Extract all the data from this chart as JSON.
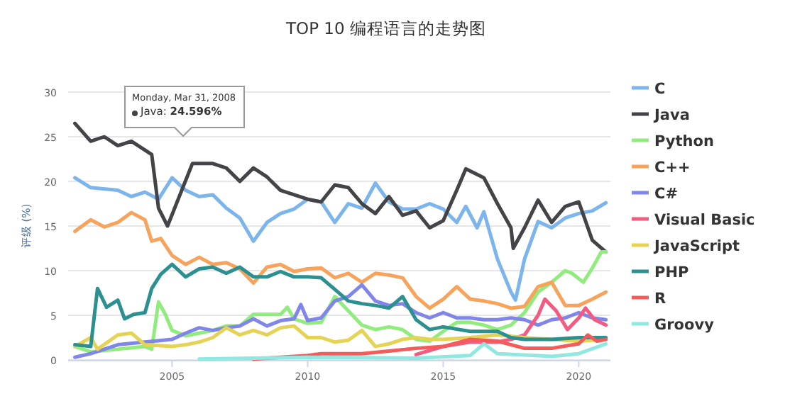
{
  "chart_data": {
    "type": "line",
    "title": "TOP 10 编程语言的走势图",
    "ylabel": "评级 (%)",
    "annotations": [
      "Monday, Mar 31, 2008",
      "Java: **24.596%**"
    ],
    "xlim": [
      "2001-03",
      "2021-03"
    ],
    "xticks": [
      {
        "value": "2005",
        "label": "2005"
      },
      {
        "value": "2010",
        "label": "2010"
      },
      {
        "value": "2015",
        "label": "2015"
      },
      {
        "value": "2020",
        "label": "2020"
      }
    ],
    "ylim": [
      0,
      30
    ],
    "yticks": [
      0,
      5,
      10,
      15,
      20,
      25,
      30
    ],
    "grid": "y",
    "legend": "right",
    "marker": "none",
    "line_style": "solid",
    "series": [
      {
        "name": "C",
        "color": "#7cb5ec",
        "x": [
          "2001-06",
          "2002-01",
          "2003-01",
          "2003-07",
          "2004-01",
          "2004-07",
          "2005-01",
          "2005-07",
          "2006-01",
          "2006-07",
          "2007-01",
          "2007-07",
          "2008-01",
          "2008-07",
          "2009-01",
          "2009-07",
          "2010-01",
          "2010-07",
          "2011-01",
          "2011-07",
          "2012-01",
          "2012-07",
          "2013-01",
          "2013-07",
          "2014-01",
          "2014-07",
          "2015-01",
          "2015-07",
          "2015-11",
          "2016-04",
          "2016-07",
          "2017-01",
          "2017-07",
          "2017-09",
          "2018-01",
          "2018-07",
          "2019-01",
          "2019-07",
          "2020-01",
          "2020-07",
          "2021-01"
        ],
        "values": [
          20.4,
          19.3,
          19,
          18.3,
          18.8,
          18,
          20.4,
          19,
          18.3,
          18.5,
          17,
          15.9,
          13.3,
          15.4,
          16.4,
          16.9,
          18,
          17.7,
          15.4,
          17.5,
          17,
          19.8,
          17.7,
          16.9,
          16.9,
          17.5,
          16.9,
          15.4,
          17.2,
          14.8,
          16.6,
          11.3,
          7.6,
          6.7,
          11.3,
          15.5,
          14.8,
          15.9,
          16.4,
          16.7,
          17.6
        ]
      },
      {
        "name": "Java",
        "color": "#434348",
        "x": [
          "2001-06",
          "2002-01",
          "2002-07",
          "2003-01",
          "2003-07",
          "2004-01",
          "2004-04",
          "2004-07",
          "2004-11",
          "2005-10",
          "2006-07",
          "2007-01",
          "2007-07",
          "2008-01",
          "2008-07",
          "2009-01",
          "2009-07",
          "2010-01",
          "2010-07",
          "2011-01",
          "2011-07",
          "2012-01",
          "2012-07",
          "2013-01",
          "2013-07",
          "2014-01",
          "2014-07",
          "2015-01",
          "2015-07",
          "2015-11",
          "2016-07",
          "2017-01",
          "2017-07",
          "2017-08",
          "2018-01",
          "2018-07",
          "2019-01",
          "2019-07",
          "2020-01",
          "2020-07",
          "2021-01"
        ],
        "values": [
          26.5,
          24.5,
          25,
          24,
          24.5,
          23.5,
          23,
          17,
          15,
          22,
          22,
          21.5,
          20,
          21.5,
          20.5,
          19,
          18.5,
          18,
          17.7,
          19.6,
          19.3,
          17.5,
          16.4,
          18.3,
          16.2,
          16.7,
          14.8,
          15.6,
          19,
          21.4,
          20.4,
          17.5,
          14.8,
          12.5,
          14.8,
          17.9,
          15.4,
          17.2,
          17.7,
          13.4,
          12.1
        ]
      },
      {
        "name": "Python",
        "color": "#90ed7d",
        "x": [
          "2001-06",
          "2002-01",
          "2003-01",
          "2004-01",
          "2004-04",
          "2004-07",
          "2004-10",
          "2005-01",
          "2005-07",
          "2006-01",
          "2006-07",
          "2007-01",
          "2007-07",
          "2008-01",
          "2008-07",
          "2009-01",
          "2009-04",
          "2009-07",
          "2010-01",
          "2010-07",
          "2011-01",
          "2011-07",
          "2012-01",
          "2012-07",
          "2013-01",
          "2013-07",
          "2014-01",
          "2014-07",
          "2015-01",
          "2015-07",
          "2016-01",
          "2016-07",
          "2017-01",
          "2017-07",
          "2018-01",
          "2018-07",
          "2019-01",
          "2019-07",
          "2019-10",
          "2020-03",
          "2020-07",
          "2020-11",
          "2021-01"
        ],
        "values": [
          1.5,
          0.9,
          1.2,
          1.5,
          1.2,
          6.5,
          5.1,
          3.3,
          2.7,
          3,
          3.3,
          3.8,
          3.8,
          5.1,
          5.1,
          5.1,
          5.9,
          4.6,
          4.1,
          4.2,
          7.1,
          5.5,
          3.9,
          3.4,
          3.7,
          3.4,
          2.3,
          2.1,
          3.2,
          4.2,
          4.2,
          3.9,
          3.4,
          3.9,
          5.3,
          7.6,
          8.7,
          10,
          9.7,
          8.7,
          10.3,
          12.1,
          12.1
        ]
      },
      {
        "name": "C++",
        "color": "#f7a35c",
        "x": [
          "2001-06",
          "2002-01",
          "2002-07",
          "2003-01",
          "2003-07",
          "2004-01",
          "2004-04",
          "2004-08",
          "2005-01",
          "2005-07",
          "2006-01",
          "2006-07",
          "2007-01",
          "2007-07",
          "2008-01",
          "2008-07",
          "2009-01",
          "2009-07",
          "2010-01",
          "2010-07",
          "2011-01",
          "2011-07",
          "2012-01",
          "2012-07",
          "2013-01",
          "2013-07",
          "2014-01",
          "2014-07",
          "2015-01",
          "2015-07",
          "2016-01",
          "2016-07",
          "2017-01",
          "2017-07",
          "2018-01",
          "2018-07",
          "2019-01",
          "2019-07",
          "2020-01",
          "2020-07",
          "2021-01"
        ],
        "values": [
          14.4,
          15.7,
          14.9,
          15.4,
          16.5,
          15.7,
          13.3,
          13.6,
          11.7,
          10.7,
          11.5,
          10.7,
          10.9,
          10.2,
          8.6,
          10.4,
          10.7,
          9.9,
          10.2,
          10.3,
          9.2,
          9.7,
          8.7,
          9.7,
          9.5,
          9.2,
          7.1,
          5.8,
          6.8,
          8.2,
          6.8,
          6.6,
          6.3,
          5.8,
          6,
          8.2,
          8.7,
          6.1,
          6.1,
          6.8,
          7.6
        ]
      },
      {
        "name": "C#",
        "color": "#8085e9",
        "x": [
          "2001-06",
          "2002-01",
          "2003-01",
          "2004-01",
          "2005-01",
          "2005-07",
          "2006-01",
          "2006-07",
          "2007-01",
          "2007-07",
          "2008-01",
          "2008-07",
          "2009-01",
          "2009-07",
          "2009-10",
          "2010-01",
          "2010-07",
          "2011-01",
          "2011-07",
          "2012-01",
          "2012-07",
          "2013-01",
          "2013-07",
          "2014-01",
          "2014-07",
          "2015-01",
          "2015-07",
          "2016-01",
          "2016-07",
          "2017-01",
          "2017-07",
          "2018-01",
          "2018-07",
          "2019-01",
          "2019-07",
          "2020-01",
          "2020-07",
          "2021-01"
        ],
        "values": [
          0.3,
          0.7,
          1.7,
          2,
          2.3,
          3,
          3.6,
          3.3,
          3.6,
          3.8,
          4.6,
          3.8,
          4.4,
          4.6,
          6.2,
          4.4,
          4.7,
          6.6,
          7.1,
          8.4,
          6.6,
          6.1,
          6.3,
          5.3,
          4.7,
          5.3,
          4.7,
          4.7,
          4.5,
          4.5,
          4.7,
          4.5,
          3.9,
          4.5,
          4.7,
          5.3,
          4.7,
          4.5
        ]
      },
      {
        "name": "Visual Basic",
        "color": "#f15c80",
        "x": [
          "2014-01",
          "2015-01",
          "2016-01",
          "2017-01",
          "2017-07",
          "2018-01",
          "2018-07",
          "2018-10",
          "2019-03",
          "2019-08",
          "2020-01",
          "2020-04",
          "2020-08",
          "2021-01"
        ],
        "values": [
          0.6,
          1.5,
          2,
          2,
          2.3,
          2.8,
          5,
          6.8,
          5.5,
          3.4,
          4.7,
          5.8,
          4.5,
          3.9
        ]
      },
      {
        "name": "JavaScript",
        "color": "#e4d354",
        "x": [
          "2001-06",
          "2002-01",
          "2002-04",
          "2003-01",
          "2003-07",
          "2004-01",
          "2005-01",
          "2005-07",
          "2006-01",
          "2006-07",
          "2007-01",
          "2007-07",
          "2008-01",
          "2008-07",
          "2009-01",
          "2009-07",
          "2010-01",
          "2010-07",
          "2011-01",
          "2011-07",
          "2012-01",
          "2012-07",
          "2013-01",
          "2013-07",
          "2014-01",
          "2014-07",
          "2015-01",
          "2016-01",
          "2017-01",
          "2018-01",
          "2019-01",
          "2020-01",
          "2021-01"
        ],
        "values": [
          1.5,
          2.5,
          1.2,
          2.8,
          3,
          1.7,
          1.5,
          1.7,
          2,
          2.5,
          3.6,
          2.8,
          3.3,
          2.8,
          3.6,
          3.8,
          2.5,
          2.5,
          2,
          2.2,
          3.3,
          1.5,
          1.8,
          2.3,
          2.5,
          2.3,
          2.3,
          2.5,
          2.8,
          2.5,
          2.3,
          2.1,
          2.3
        ]
      },
      {
        "name": "PHP",
        "color": "#2b908f",
        "x": [
          "2001-06",
          "2002-01",
          "2002-04",
          "2002-08",
          "2003-01",
          "2003-04",
          "2003-08",
          "2004-01",
          "2004-04",
          "2004-08",
          "2005-01",
          "2005-07",
          "2006-01",
          "2006-07",
          "2007-01",
          "2007-07",
          "2008-01",
          "2008-07",
          "2009-01",
          "2009-07",
          "2010-01",
          "2010-07",
          "2011-01",
          "2011-07",
          "2012-01",
          "2012-07",
          "2013-01",
          "2013-07",
          "2014-01",
          "2014-07",
          "2015-01",
          "2016-01",
          "2017-01",
          "2017-07",
          "2018-01",
          "2019-01",
          "2020-01",
          "2021-01"
        ],
        "values": [
          1.7,
          1.5,
          8,
          5.9,
          6.7,
          4.6,
          5.1,
          5.3,
          8,
          9.6,
          10.7,
          9.3,
          10.2,
          10.4,
          9.7,
          10.4,
          9.3,
          9.3,
          9.9,
          9.3,
          9.3,
          9.2,
          7.9,
          6.6,
          6.3,
          6.1,
          5.8,
          7.1,
          4.5,
          3.4,
          3.7,
          3.2,
          3.2,
          2.5,
          2.3,
          2.3,
          2.5,
          2.5
        ]
      },
      {
        "name": "R",
        "color": "#f45b5b",
        "x": [
          "2008-01",
          "2009-07",
          "2010-01",
          "2010-07",
          "2012-01",
          "2013-01",
          "2014-01",
          "2015-01",
          "2016-01",
          "2017-01",
          "2018-01",
          "2019-01",
          "2020-01",
          "2020-05",
          "2020-09",
          "2021-01"
        ],
        "values": [
          0.1,
          0.4,
          0.5,
          0.7,
          0.7,
          1,
          1.3,
          1.5,
          2.3,
          2.1,
          1.3,
          1.3,
          1.8,
          2.8,
          2.1,
          2.3
        ]
      },
      {
        "name": "Groovy",
        "color": "#91e8e1",
        "x": [
          "2006-01",
          "2010-01",
          "2014-01",
          "2016-01",
          "2016-07",
          "2017-01",
          "2019-01",
          "2020-01",
          "2021-01"
        ],
        "values": [
          0.1,
          0.3,
          0.2,
          0.5,
          1.8,
          0.7,
          0.4,
          0.7,
          1.8
        ]
      }
    ]
  }
}
